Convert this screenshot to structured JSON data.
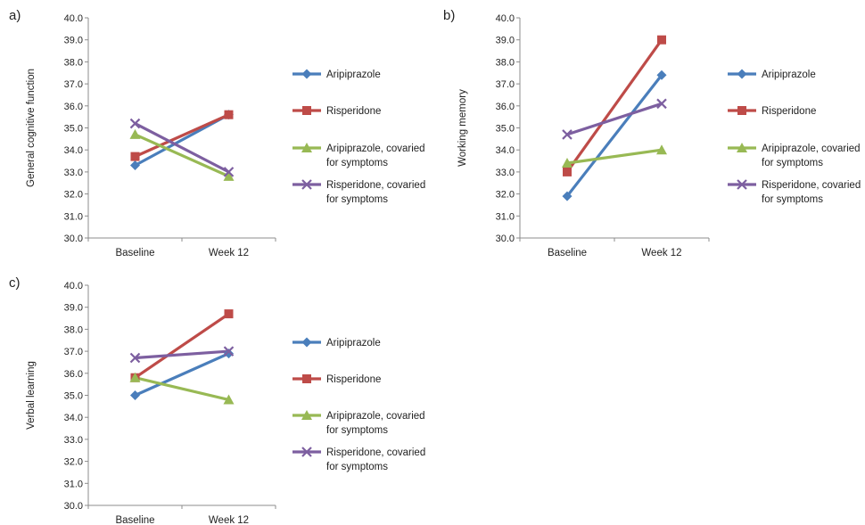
{
  "colors": {
    "Aripiprazole": "#4a7ebb",
    "Risperidone": "#be4b48",
    "Aripiprazole, covaried for symptoms": "#98b954",
    "Risperidone, covaried for symptoms": "#7d5fa0"
  },
  "chart_data": [
    {
      "type": "line",
      "panel_label": "a)",
      "ylabel": "General cognitive function",
      "categories": [
        "Baseline",
        "Week 12"
      ],
      "ylim": [
        30.0,
        40.0
      ],
      "yticks": [
        "30.0",
        "31.0",
        "32.0",
        "33.0",
        "34.0",
        "35.0",
        "36.0",
        "37.0",
        "38.0",
        "39.0",
        "40.0"
      ],
      "grid": false,
      "legend_position": "right",
      "series": [
        {
          "name": "Aripiprazole",
          "marker": "diamond",
          "legend_lines": [
            "Aripiprazole"
          ],
          "values": [
            33.3,
            35.6
          ]
        },
        {
          "name": "Risperidone",
          "marker": "square",
          "legend_lines": [
            "Risperidone"
          ],
          "values": [
            33.7,
            35.6
          ]
        },
        {
          "name": "Aripiprazole, covaried for symptoms",
          "marker": "triangle",
          "legend_lines": [
            "Aripiprazole, covaried",
            "for symptoms"
          ],
          "values": [
            34.7,
            32.8
          ]
        },
        {
          "name": "Risperidone, covaried for symptoms",
          "marker": "x",
          "legend_lines": [
            "Risperidone, covaried",
            "for symptoms"
          ],
          "values": [
            35.2,
            33.0
          ]
        }
      ]
    },
    {
      "type": "line",
      "panel_label": "b)",
      "ylabel": "Working memory",
      "categories": [
        "Baseline",
        "Week 12"
      ],
      "ylim": [
        30.0,
        40.0
      ],
      "yticks": [
        "30.0",
        "31.0",
        "32.0",
        "33.0",
        "34.0",
        "35.0",
        "36.0",
        "37.0",
        "38.0",
        "39.0",
        "40.0"
      ],
      "grid": false,
      "legend_position": "right",
      "series": [
        {
          "name": "Aripiprazole",
          "marker": "diamond",
          "legend_lines": [
            "Aripiprazole"
          ],
          "values": [
            31.9,
            37.4
          ]
        },
        {
          "name": "Risperidone",
          "marker": "square",
          "legend_lines": [
            "Risperidone"
          ],
          "values": [
            33.0,
            39.0
          ]
        },
        {
          "name": "Aripiprazole, covaried for symptoms",
          "marker": "triangle",
          "legend_lines": [
            "Aripiprazole, covaried",
            "for symptoms"
          ],
          "values": [
            33.4,
            34.0
          ]
        },
        {
          "name": "Risperidone, covaried for symptoms",
          "marker": "x",
          "legend_lines": [
            "Risperidone, covaried",
            "for symptoms"
          ],
          "values": [
            34.7,
            36.1
          ]
        }
      ]
    },
    {
      "type": "line",
      "panel_label": "c)",
      "ylabel": "Verbal learning",
      "categories": [
        "Baseline",
        "Week 12"
      ],
      "ylim": [
        30.0,
        40.0
      ],
      "yticks": [
        "30.0",
        "31.0",
        "32.0",
        "33.0",
        "34.0",
        "35.0",
        "36.0",
        "37.0",
        "38.0",
        "39.0",
        "40.0"
      ],
      "grid": false,
      "legend_position": "right",
      "series": [
        {
          "name": "Aripiprazole",
          "marker": "diamond",
          "legend_lines": [
            "Aripiprazole"
          ],
          "values": [
            35.0,
            36.9
          ]
        },
        {
          "name": "Risperidone",
          "marker": "square",
          "legend_lines": [
            "Risperidone"
          ],
          "values": [
            35.8,
            38.7
          ]
        },
        {
          "name": "Aripiprazole, covaried for symptoms",
          "marker": "triangle",
          "legend_lines": [
            "Aripiprazole, covaried",
            "for symptoms"
          ],
          "values": [
            35.8,
            34.8
          ]
        },
        {
          "name": "Risperidone, covaried for symptoms",
          "marker": "x",
          "legend_lines": [
            "Risperidone, covaried",
            "for symptoms"
          ],
          "values": [
            36.7,
            37.0
          ]
        }
      ]
    }
  ]
}
